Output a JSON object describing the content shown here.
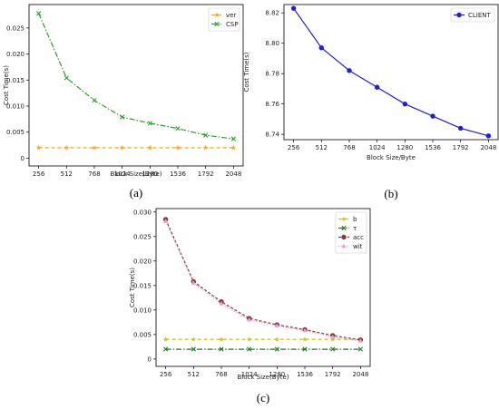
{
  "colors": {
    "ver": "#f5a623",
    "CSP": "#2ca02c",
    "CLIENT": "#1f1fd6",
    "b": "#d4c11a",
    "tau": "#1e7a1e",
    "acc": "#8b3a2a",
    "wit": "#e6a0e6"
  },
  "chart_data": [
    {
      "type": "line",
      "panel": "(a)",
      "caption": "(a)",
      "xlabel": "Block Size(Byte)",
      "ylabel": "Cost Time(s)",
      "categories": [
        "256",
        "512",
        "768",
        "1024",
        "1280",
        "1536",
        "1792",
        "2048"
      ],
      "ylim": [
        -0.0015,
        0.0295
      ],
      "yticks": [
        0,
        0.005,
        0.01,
        0.015,
        0.02,
        0.025
      ],
      "ytick_labels": [
        "0",
        "0.005",
        "0.010",
        "0.015",
        "0.020",
        "0.025"
      ],
      "legend_position": "top-right",
      "series": [
        {
          "name": "ver",
          "color_key": "ver",
          "dash": "4,3",
          "marker": "star",
          "values": [
            0.002,
            0.002,
            0.002,
            0.002,
            0.002,
            0.002,
            0.002,
            0.002
          ]
        },
        {
          "name": "CSP",
          "color_key": "CSP",
          "dash": "6,2,1.5,2",
          "marker": "x",
          "values": [
            0.0278,
            0.0154,
            0.0111,
            0.0079,
            0.0067,
            0.0057,
            0.0044,
            0.0037
          ]
        }
      ]
    },
    {
      "type": "line",
      "panel": "(b)",
      "caption": "(b)",
      "xlabel": "Block Size/Byte",
      "ylabel": "Cost Time(s)",
      "categories": [
        "256",
        "512",
        "768",
        "1024",
        "1280",
        "1536",
        "1792",
        "2048"
      ],
      "ylim": [
        8.7365,
        8.8255
      ],
      "yticks": [
        8.74,
        8.76,
        8.78,
        8.8,
        8.82
      ],
      "ytick_labels": [
        "8.74",
        "8.76",
        "8.78",
        "8.80",
        "8.82"
      ],
      "legend_position": "top-right",
      "series": [
        {
          "name": "CLIENT",
          "color_key": "CLIENT",
          "dash": "",
          "marker": "circle",
          "values": [
            8.823,
            8.797,
            8.782,
            8.771,
            8.76,
            8.752,
            8.744,
            8.739
          ]
        }
      ]
    },
    {
      "type": "line",
      "panel": "(c)",
      "caption": "(c)",
      "xlabel": "Block Size(Byte)",
      "ylabel": "Cost Time(s)",
      "categories": [
        "256",
        "512",
        "768",
        "1024",
        "1280",
        "1536",
        "1792",
        "2048"
      ],
      "ylim": [
        -0.0015,
        0.0307
      ],
      "yticks": [
        0,
        0.005,
        0.01,
        0.015,
        0.02,
        0.025,
        0.03
      ],
      "ytick_labels": [
        "0",
        "0.005",
        "0.010",
        "0.015",
        "0.020",
        "0.025",
        "0.030"
      ],
      "legend_position": "top-right",
      "series": [
        {
          "name": "b",
          "color_key": "b",
          "dash": "4,3",
          "marker": "star",
          "values": [
            0.004,
            0.004,
            0.004,
            0.004,
            0.004,
            0.004,
            0.004,
            0.004
          ]
        },
        {
          "name": "τ",
          "color_key": "tau",
          "dash": "6,2,1.5,2",
          "marker": "x",
          "values": [
            0.002,
            0.002,
            0.002,
            0.002,
            0.002,
            0.002,
            0.002,
            0.002
          ]
        },
        {
          "name": "acc",
          "color_key": "acc",
          "dash": "3,2",
          "marker": "circle",
          "values": [
            0.0285,
            0.0158,
            0.0117,
            0.0083,
            0.007,
            0.006,
            0.0048,
            0.0039
          ]
        },
        {
          "name": "wit",
          "color_key": "wit",
          "dash": "1.5,1.5",
          "marker": "triangle",
          "values": [
            0.0281,
            0.0155,
            0.0113,
            0.008,
            0.0068,
            0.0058,
            0.0045,
            0.0037
          ]
        }
      ]
    }
  ]
}
